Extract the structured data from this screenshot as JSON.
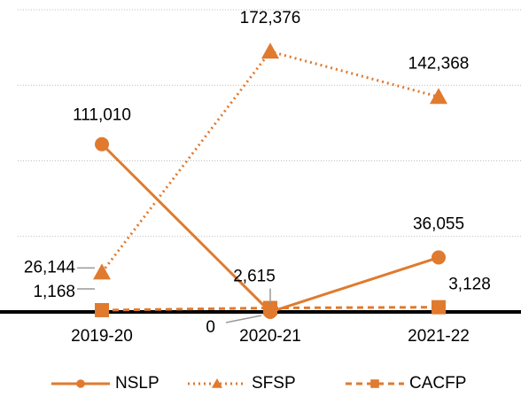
{
  "chart_data": {
    "type": "line",
    "categories": [
      "2019-20",
      "2020-21",
      "2021-22"
    ],
    "series": [
      {
        "name": "NSLP",
        "color": "#e07a2e",
        "style": "solid",
        "marker": "circle",
        "values": [
          111010,
          0,
          36055
        ],
        "value_labels": [
          "111,010",
          "0",
          "36,055"
        ]
      },
      {
        "name": "SFSP",
        "color": "#e07a2e",
        "style": "dotted",
        "marker": "triangle",
        "values": [
          26144,
          172376,
          142368
        ],
        "value_labels": [
          "26,144",
          "172,376",
          "142,368"
        ]
      },
      {
        "name": "CACFP",
        "color": "#e07a2e",
        "style": "dashed",
        "marker": "square",
        "values": [
          1168,
          2615,
          3128
        ],
        "value_labels": [
          "1,168",
          "2,615",
          "3,128"
        ]
      }
    ],
    "ylim": [
      0,
      200000
    ],
    "yticks": [
      0,
      50000,
      100000,
      150000,
      200000
    ],
    "grid": true,
    "legend": "bottom"
  }
}
